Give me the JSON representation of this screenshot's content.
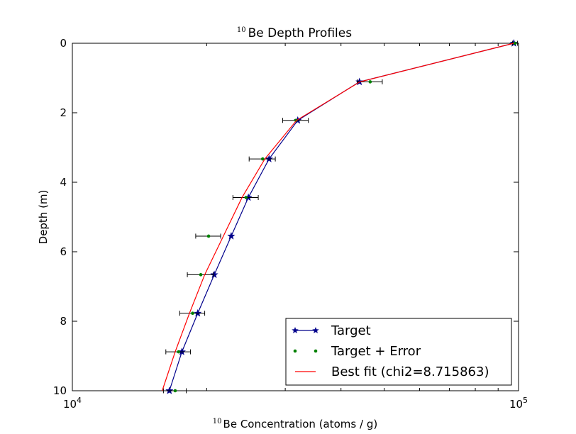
{
  "chart_data": {
    "type": "line",
    "title_sup": "10",
    "title": "Be Depth Profiles",
    "xlabel_sup": "10",
    "xlabel": "Be Concentration (atoms / g)",
    "ylabel": "Depth (m)",
    "x_scale": "log",
    "xlim": [
      10000,
      100000
    ],
    "ylim": [
      10,
      0
    ],
    "y_inverted": true,
    "y_ticks": [
      0,
      2,
      4,
      6,
      8,
      10
    ],
    "y_tick_labels": [
      "0",
      "2",
      "4",
      "6",
      "8",
      "10"
    ],
    "x_tick_labels": [
      {
        "value": 10000,
        "base": "10",
        "exp": "4"
      },
      {
        "value": 100000,
        "base": "10",
        "exp": "5"
      }
    ],
    "legend_position": "bottom-right",
    "series": [
      {
        "name": "Target",
        "color": "#00008b",
        "marker": "star",
        "points": [
          {
            "x": 97600,
            "y": 0.0
          },
          {
            "x": 44000,
            "y": 1.11
          },
          {
            "x": 32000,
            "y": 2.22
          },
          {
            "x": 27600,
            "y": 3.33
          },
          {
            "x": 24800,
            "y": 4.44
          },
          {
            "x": 22700,
            "y": 5.55
          },
          {
            "x": 20800,
            "y": 6.66
          },
          {
            "x": 19100,
            "y": 7.77
          },
          {
            "x": 17600,
            "y": 8.88
          },
          {
            "x": 16500,
            "y": 10.0
          }
        ]
      },
      {
        "name": "Target + Error",
        "color": "#008000",
        "marker": "dot",
        "points": [
          {
            "x": 98200,
            "y": 0.0,
            "xerr": 1300
          },
          {
            "x": 46500,
            "y": 1.11,
            "xerr": 3000
          },
          {
            "x": 31700,
            "y": 2.22,
            "xerr": 2100
          },
          {
            "x": 26700,
            "y": 3.33,
            "xerr": 1800
          },
          {
            "x": 24500,
            "y": 4.44,
            "xerr": 1600
          },
          {
            "x": 20200,
            "y": 5.55,
            "xerr": 1300
          },
          {
            "x": 19400,
            "y": 6.66,
            "xerr": 1300
          },
          {
            "x": 18600,
            "y": 7.77,
            "xerr": 1200
          },
          {
            "x": 17300,
            "y": 8.88,
            "xerr": 1100
          },
          {
            "x": 17000,
            "y": 10.0,
            "xerr": 1000
          }
        ]
      },
      {
        "name": "Best fit (chi2=8.715863)",
        "color": "#ff0000",
        "marker": "none",
        "points": [
          {
            "x": 97500,
            "y": 0.0
          },
          {
            "x": 44100,
            "y": 1.11
          },
          {
            "x": 31800,
            "y": 2.22
          },
          {
            "x": 27000,
            "y": 3.33
          },
          {
            "x": 24000,
            "y": 4.44
          },
          {
            "x": 21800,
            "y": 5.55
          },
          {
            "x": 19800,
            "y": 6.66
          },
          {
            "x": 18300,
            "y": 7.77
          },
          {
            "x": 17000,
            "y": 8.88
          },
          {
            "x": 15900,
            "y": 10.0
          }
        ]
      }
    ]
  }
}
